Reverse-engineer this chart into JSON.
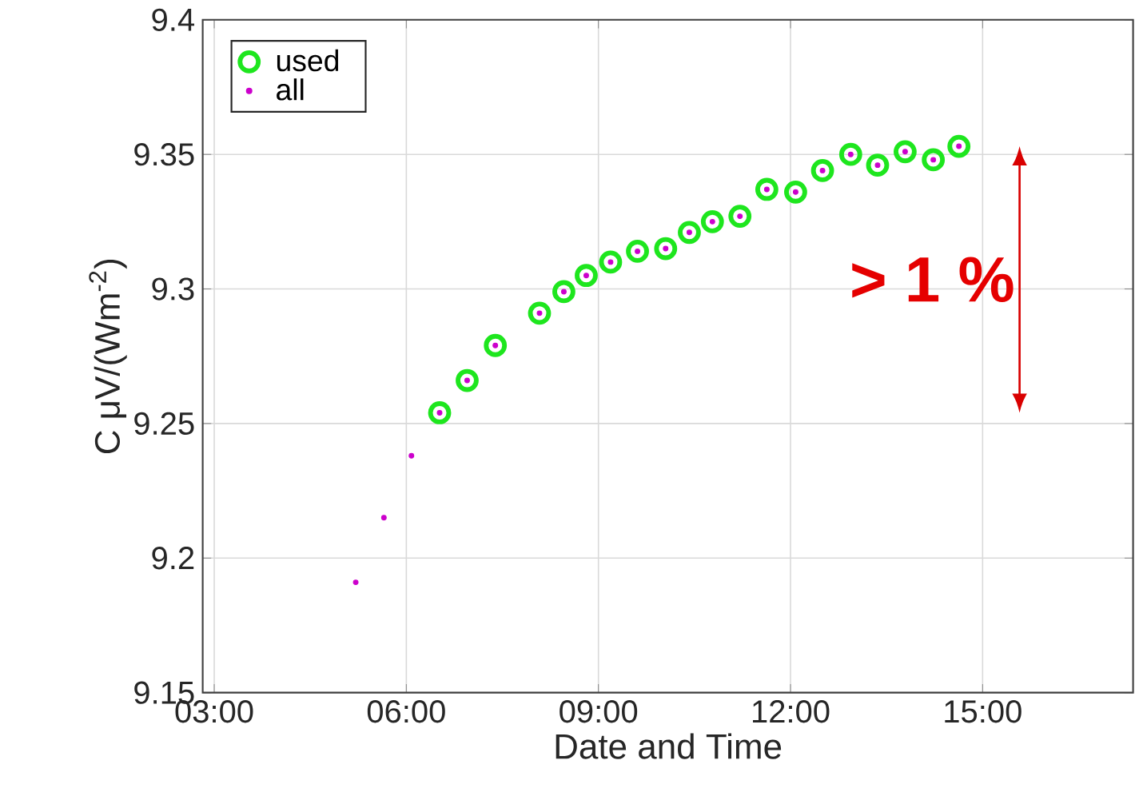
{
  "chart_data": {
    "type": "scatter",
    "xlabel": "Date and Time",
    "ylabel": "C μV/(Wm$^{-2}$)",
    "xlim": [
      2.82,
      17.35
    ],
    "ylim": [
      9.15,
      9.4
    ],
    "xticks": [
      {
        "value": 3,
        "label": "03:00"
      },
      {
        "value": 6,
        "label": "06:00"
      },
      {
        "value": 9,
        "label": "09:00"
      },
      {
        "value": 12,
        "label": "12:00"
      },
      {
        "value": 15,
        "label": "15:00"
      }
    ],
    "yticks": [
      9.15,
      9.2,
      9.25,
      9.3,
      9.35,
      9.4
    ],
    "grid": true,
    "legend": "top left",
    "series": [
      {
        "name": "used",
        "color": "#1ee61e",
        "marker": "circle",
        "x": [
          6.52,
          6.95,
          7.39,
          8.08,
          8.46,
          8.81,
          9.19,
          9.61,
          10.05,
          10.42,
          10.78,
          11.21,
          11.63,
          12.08,
          12.5,
          12.94,
          13.36,
          13.79,
          14.23,
          14.63
        ],
        "values": [
          9.254,
          9.266,
          9.279,
          9.291,
          9.299,
          9.305,
          9.31,
          9.314,
          9.315,
          9.321,
          9.325,
          9.327,
          9.337,
          9.336,
          9.344,
          9.35,
          9.346,
          9.351,
          9.348,
          9.353
        ]
      },
      {
        "name": "all",
        "color": "#cc00cc",
        "marker": "circle",
        "x": [
          5.21,
          5.65,
          6.08,
          6.52,
          6.95,
          7.39,
          8.08,
          8.46,
          8.81,
          9.19,
          9.61,
          10.05,
          10.42,
          10.78,
          11.21,
          11.63,
          12.08,
          12.5,
          12.94,
          13.36,
          13.79,
          14.23,
          14.63
        ],
        "values": [
          9.191,
          9.215,
          9.238,
          9.254,
          9.266,
          9.279,
          9.291,
          9.299,
          9.305,
          9.31,
          9.314,
          9.315,
          9.321,
          9.325,
          9.327,
          9.337,
          9.336,
          9.344,
          9.35,
          9.346,
          9.351,
          9.348,
          9.353
        ]
      }
    ],
    "annotations": [
      "> 1 %"
    ]
  }
}
